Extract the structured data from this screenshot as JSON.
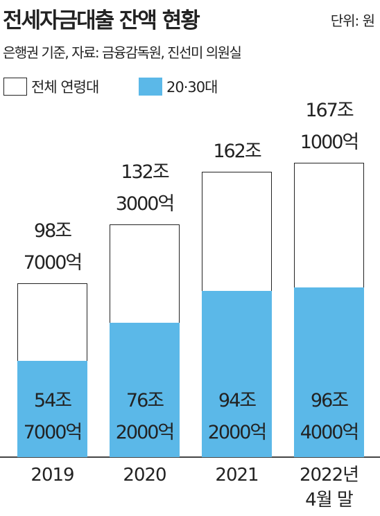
{
  "chart_data": {
    "type": "bar",
    "title": "전세자금대출 잔액 현황",
    "unit": "단위: 원",
    "subtitle": "은행권 기준, 자료: 금융감독원, 진선미 의원실",
    "categories": [
      "2019",
      "2020",
      "2021",
      "2022년 4월 말"
    ],
    "series": [
      {
        "name": "전체 연령대",
        "color": "#ffffff",
        "values": [
          98.7,
          132.3,
          162,
          167.1
        ],
        "value_labels": [
          "98조 7000억",
          "132조 3000억",
          "162조",
          "167조 1000억"
        ]
      },
      {
        "name": "20·30대",
        "color": "#5bb8e8",
        "values": [
          54.7,
          76.2,
          94.2,
          96.4
        ],
        "value_labels": [
          "54조 7000억",
          "76조 2000억",
          "94조 2000억",
          "96조 4000억"
        ]
      }
    ]
  }
}
